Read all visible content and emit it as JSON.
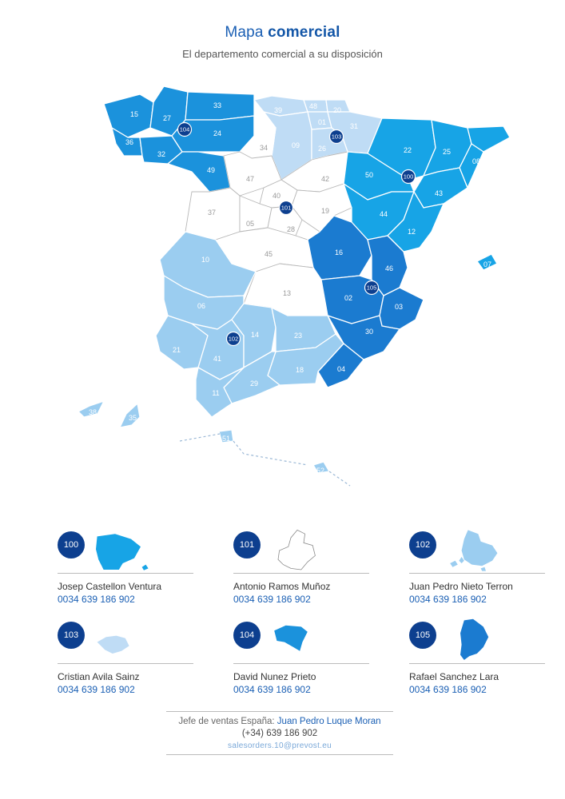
{
  "header": {
    "title_light": "Mapa",
    "title_bold": "comercial",
    "subtitle": "El departemento comercial a su disposición"
  },
  "colors": {
    "darkblue": "#1b7bd0",
    "midblue": "#17a4e6",
    "lightblue": "#9bcdf0",
    "paleblue": "#bfdcf5",
    "white_region": "#ffffff",
    "badge": "#0d3f8f",
    "text_blue": "#1a5fb4"
  },
  "map": {
    "province_codes": [
      "01",
      "02",
      "03",
      "04",
      "05",
      "06",
      "07",
      "08",
      "09",
      "10",
      "11",
      "12",
      "13",
      "14",
      "15",
      "16",
      "17",
      "18",
      "19",
      "20",
      "21",
      "22",
      "23",
      "24",
      "25",
      "26",
      "27",
      "28",
      "29",
      "30",
      "31",
      "32",
      "33",
      "34",
      "35",
      "36",
      "37",
      "38",
      "39",
      "40",
      "41",
      "42",
      "43",
      "44",
      "45",
      "46",
      "47",
      "48",
      "49",
      "50",
      "51",
      "52"
    ],
    "badges": [
      "100",
      "101",
      "102",
      "103",
      "104",
      "105"
    ]
  },
  "agents": [
    {
      "badge": "100",
      "name": "Josep Castellon Ventura",
      "phone": "0034 639 186 902",
      "icon": "northeast-zone-icon"
    },
    {
      "badge": "101",
      "name": "Antonio Ramos Muñoz",
      "phone": "0034 639 186 902",
      "icon": "center-zone-icon"
    },
    {
      "badge": "102",
      "name": "Juan Pedro Nieto Terron",
      "phone": "0034 639 186 902",
      "icon": "south-zone-icon"
    },
    {
      "badge": "103",
      "name": "Cristian Avila Sainz",
      "phone": "0034 639 186 902",
      "icon": "north-zone-icon"
    },
    {
      "badge": "104",
      "name": "David Nunez Prieto",
      "phone": "0034 639 186 902",
      "icon": "northwest-zone-icon"
    },
    {
      "badge": "105",
      "name": "Rafael Sanchez Lara",
      "phone": "0034 639 186 902",
      "icon": "east-zone-icon"
    }
  ],
  "footer": {
    "label": "Jefe de ventas España:",
    "boss_name": "Juan Pedro Luque Moran",
    "phone": "(+34) 639 186 902",
    "email": "salesorders.10@prevost.eu"
  }
}
